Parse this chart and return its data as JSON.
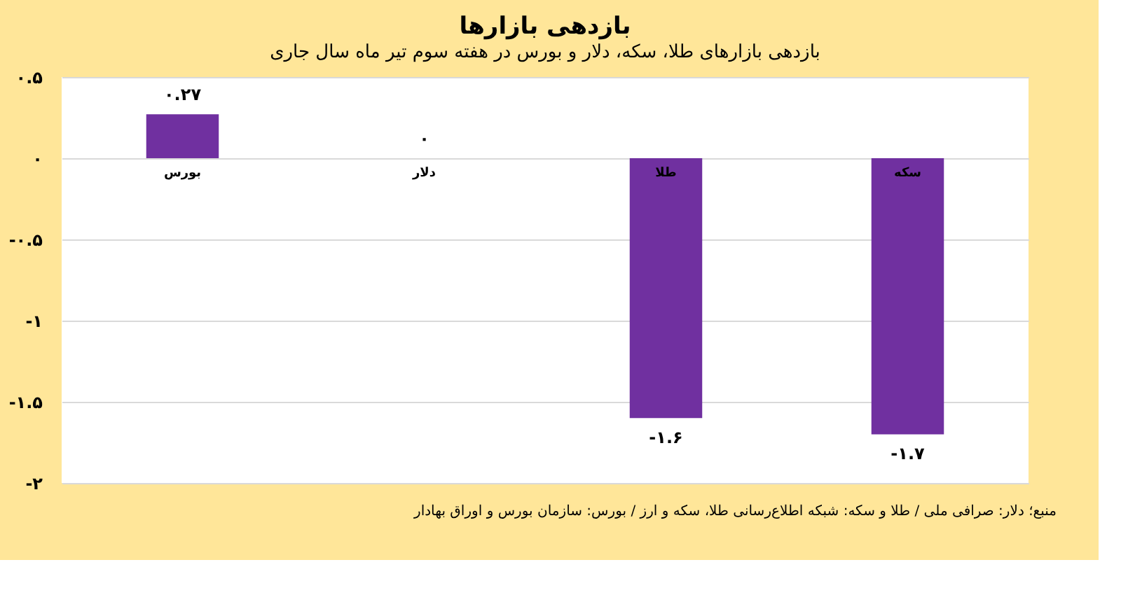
{
  "chart_data": {
    "type": "bar",
    "title": "بازدهی بازارها",
    "subtitle": "بازدهی بازارهای طلا، سکه، دلار و بورس در هفته سوم تیر ماه سال جاری",
    "categories": [
      "بورس",
      "دلار",
      "طلا",
      "سکه"
    ],
    "values": [
      0.27,
      0,
      -1.6,
      -1.7
    ],
    "value_labels": [
      "۰.۲۷",
      "۰",
      "-۱.۶",
      "-۱.۷"
    ],
    "color": "#7030a0",
    "ylim": [
      -2,
      0.5
    ],
    "yticks": [
      {
        "value": 0.5,
        "label": "۰.۵"
      },
      {
        "value": 0,
        "label": "۰"
      },
      {
        "value": -0.5,
        "label": "-۰.۵"
      },
      {
        "value": -1,
        "label": "-۱"
      },
      {
        "value": -1.5,
        "label": "-۱.۵"
      },
      {
        "value": -2,
        "label": "-۲"
      }
    ],
    "grid": "y",
    "annotations": [
      "منبع؛ دلار: صرافی ملی / طلا و سکه: شبکه اطلاع‌رسانی طلا، سکه و ارز / بورس: سازمان بورس و اوراق بهادار"
    ]
  }
}
